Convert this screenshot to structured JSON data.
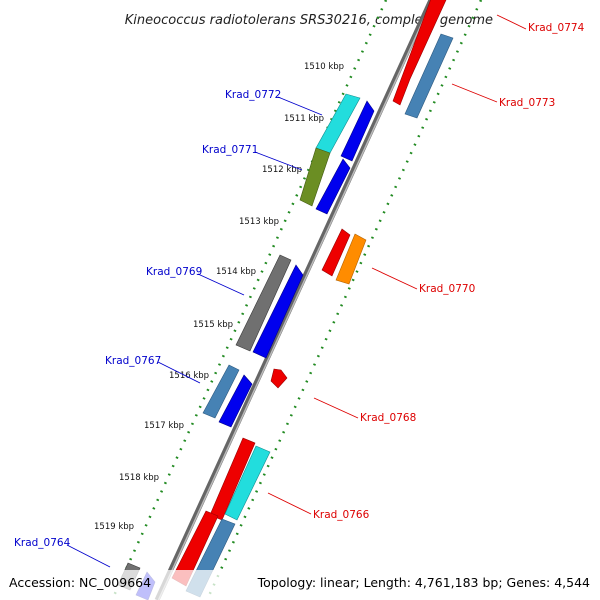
{
  "title": "Kineococcus radiotolerans SRS30216, complete genome",
  "accession": "Accession: NC_009664",
  "topology": "Topology: linear; Length: 4,761,183 bp; Genes: 4,544",
  "colors": {
    "red": "#ee0000",
    "blue": "#0000ee",
    "steelblue": "#4682b4",
    "cyan": "#22dddd",
    "olive": "#6b8e23",
    "orange": "#ff8c00",
    "gray": "#707070",
    "label_forward": "#0000cc",
    "label_reverse": "#dd0000",
    "tick": "#228b22"
  },
  "ticks": [
    "1510 kbp",
    "1511 kbp",
    "1512 kbp",
    "1513 kbp",
    "1514 kbp",
    "1515 kbp",
    "1516 kbp",
    "1517 kbp",
    "1518 kbp",
    "1519 kbp"
  ],
  "gene_labels": {
    "forward": [
      "Krad_0772",
      "Krad_0771",
      "Krad_0769",
      "Krad_0767",
      "Krad_0764"
    ],
    "reverse": [
      "Krad_0774",
      "Krad_0773",
      "Krad_0770",
      "Krad_0768",
      "Krad_0766"
    ]
  }
}
